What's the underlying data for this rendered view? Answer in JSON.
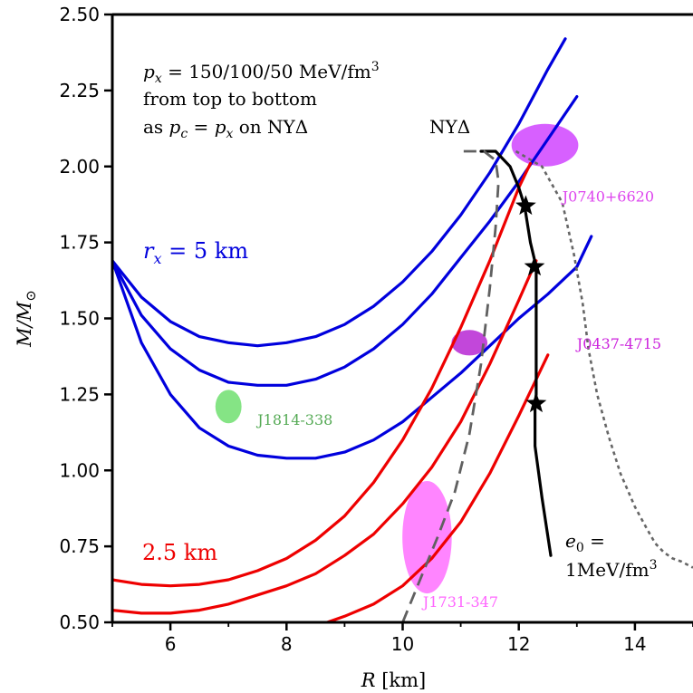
{
  "chart_data": {
    "type": "line",
    "xlabel": "R [km]",
    "ylabel": "M/M⊙",
    "xlim": [
      5,
      15
    ],
    "ylim": [
      0.5,
      2.5
    ],
    "xticks": [
      6,
      8,
      10,
      12,
      14
    ],
    "xtick_labels": [
      "6",
      "8",
      "10",
      "12",
      "14"
    ],
    "yticks": [
      0.5,
      0.75,
      1.0,
      1.25,
      1.5,
      1.75,
      2.0,
      2.25,
      2.5
    ],
    "ytick_labels": [
      "0.50",
      "0.75",
      "1.00",
      "1.25",
      "1.50",
      "1.75",
      "2.00",
      "2.25",
      "2.50"
    ],
    "grid": false,
    "legend": "none",
    "series": [
      {
        "group": "rx5",
        "color": "#0000dd",
        "width": 3.2,
        "dash": "",
        "x": [
          5.0,
          5.5,
          6.0,
          6.5,
          7.0,
          7.5,
          8.0,
          8.5,
          9.0,
          9.5,
          10.0,
          10.5,
          11.0,
          11.5,
          12.0,
          12.5,
          12.8
        ],
        "y": [
          1.69,
          1.57,
          1.49,
          1.44,
          1.42,
          1.41,
          1.42,
          1.44,
          1.48,
          1.54,
          1.62,
          1.72,
          1.84,
          1.98,
          2.14,
          2.32,
          2.42
        ]
      },
      {
        "group": "rx5",
        "color": "#0000dd",
        "width": 3.2,
        "dash": "",
        "x": [
          5.0,
          5.5,
          6.0,
          6.5,
          7.0,
          7.5,
          8.0,
          8.5,
          9.0,
          9.5,
          10.0,
          10.5,
          11.0,
          11.5,
          12.0,
          12.5,
          13.0
        ],
        "y": [
          1.69,
          1.51,
          1.4,
          1.33,
          1.29,
          1.28,
          1.28,
          1.3,
          1.34,
          1.4,
          1.48,
          1.58,
          1.7,
          1.82,
          1.95,
          2.09,
          2.23
        ]
      },
      {
        "group": "rx5",
        "color": "#0000dd",
        "width": 3.2,
        "dash": "",
        "x": [
          5.0,
          5.5,
          6.0,
          6.5,
          7.0,
          7.5,
          8.0,
          8.5,
          9.0,
          9.5,
          10.0,
          10.5,
          11.0,
          11.5,
          12.0,
          12.5,
          13.0,
          13.25
        ],
        "y": [
          1.69,
          1.42,
          1.25,
          1.14,
          1.08,
          1.05,
          1.04,
          1.04,
          1.06,
          1.1,
          1.16,
          1.24,
          1.32,
          1.41,
          1.5,
          1.58,
          1.67,
          1.77
        ]
      },
      {
        "group": "rx25",
        "color": "#ee0000",
        "width": 3.2,
        "dash": "",
        "x": [
          5.0,
          5.5,
          6.0,
          6.5,
          7.0,
          7.5,
          8.0,
          8.5,
          9.0,
          9.5,
          10.0,
          10.5,
          11.0,
          11.5,
          12.0,
          12.2
        ],
        "y": [
          0.64,
          0.625,
          0.62,
          0.625,
          0.64,
          0.67,
          0.71,
          0.77,
          0.85,
          0.96,
          1.1,
          1.27,
          1.47,
          1.69,
          1.93,
          2.01
        ]
      },
      {
        "group": "rx25",
        "color": "#ee0000",
        "width": 3.2,
        "dash": "",
        "x": [
          5.0,
          5.5,
          6.0,
          6.5,
          7.0,
          7.5,
          8.0,
          8.5,
          9.0,
          9.5,
          10.0,
          10.5,
          11.0,
          11.5,
          12.0,
          12.3
        ],
        "y": [
          0.54,
          0.53,
          0.53,
          0.54,
          0.56,
          0.59,
          0.62,
          0.66,
          0.72,
          0.79,
          0.89,
          1.01,
          1.16,
          1.35,
          1.56,
          1.69
        ]
      },
      {
        "group": "rx25",
        "color": "#ee0000",
        "width": 3.2,
        "dash": "",
        "x": [
          8.7,
          9.0,
          9.5,
          10.0,
          10.5,
          11.0,
          11.5,
          12.0,
          12.5
        ],
        "y": [
          0.5,
          0.52,
          0.56,
          0.62,
          0.71,
          0.83,
          0.99,
          1.18,
          1.38
        ]
      },
      {
        "group": "nyd-black",
        "color": "#000000",
        "width": 3.2,
        "dash": "",
        "x": [
          11.35,
          11.6,
          11.85,
          12.0,
          12.1,
          12.2,
          12.3,
          12.3,
          12.3,
          12.28,
          12.28,
          12.4,
          12.55
        ],
        "y": [
          2.05,
          2.05,
          2.0,
          1.93,
          1.87,
          1.75,
          1.67,
          1.5,
          1.25,
          1.22,
          1.08,
          0.91,
          0.72
        ]
      },
      {
        "group": "nyd-dashed",
        "color": "#606060",
        "width": 2.8,
        "dash": "14,8",
        "x": [
          10.0,
          10.3,
          10.6,
          10.9,
          11.15,
          11.35,
          11.5,
          11.6,
          11.65,
          11.6,
          11.4,
          11.2,
          11.05
        ],
        "y": [
          0.5,
          0.64,
          0.78,
          0.93,
          1.12,
          1.35,
          1.6,
          1.8,
          1.95,
          2.02,
          2.05,
          2.05,
          2.05
        ]
      },
      {
        "group": "nyd-dotted",
        "color": "#666666",
        "width": 2.6,
        "dash": "4,4",
        "x": [
          11.95,
          12.4,
          12.75,
          12.95,
          13.1,
          13.2,
          13.35,
          13.55,
          13.75,
          14.0,
          14.2,
          14.35,
          14.5,
          14.65,
          14.8,
          15.0
        ],
        "y": [
          2.05,
          2.0,
          1.88,
          1.71,
          1.55,
          1.4,
          1.25,
          1.11,
          0.99,
          0.88,
          0.81,
          0.76,
          0.73,
          0.71,
          0.7,
          0.68
        ]
      }
    ],
    "stars": [
      {
        "x": 12.12,
        "y": 1.87
      },
      {
        "x": 12.27,
        "y": 1.67
      },
      {
        "x": 12.3,
        "y": 1.22
      }
    ],
    "ellipses": [
      {
        "name": "J0740+6620",
        "cx": 12.45,
        "cy": 2.07,
        "rx": 1.15,
        "ry": 0.07,
        "color": "#cc33ff",
        "opacity": 0.78,
        "label": "J0740+6620",
        "label_x": 12.75,
        "label_y": 1.885,
        "label_color": "#dd44ee"
      },
      {
        "name": "J0437-4715",
        "cx": 11.15,
        "cy": 1.42,
        "rx": 0.62,
        "ry": 0.042,
        "color": "#aa00cc",
        "opacity": 0.72,
        "label": "J0437-4715",
        "label_x": 13.0,
        "label_y": 1.4,
        "label_color": "#cc22dd"
      },
      {
        "name": "J1814-338",
        "cx": 7.0,
        "cy": 1.21,
        "rx": 0.45,
        "ry": 0.055,
        "color": "#66dd66",
        "opacity": 0.8,
        "label": "J1814-338",
        "label_x": 7.5,
        "label_y": 1.15,
        "label_color": "#55aa55"
      },
      {
        "name": "J1731-347",
        "cx": 10.42,
        "cy": 0.78,
        "rx": 0.85,
        "ry": 0.185,
        "color": "#ff66ff",
        "opacity": 0.8,
        "label": "J1731-347",
        "label_x": 10.35,
        "label_y": 0.55,
        "label_color": "#ff66ff"
      }
    ],
    "annotations": {
      "px_line1": "p_x = 150/100/50 MeV/fm^3",
      "px_line2": "from top to bottom",
      "px_line3": "as p_c = p_x on NYΔ",
      "nyd": "NYΔ",
      "rx5": "r_x = 5 km",
      "rx25": "2.5 km",
      "e0_line1": "e_0 =",
      "e0_line2": "1MeV/fm^3"
    }
  }
}
